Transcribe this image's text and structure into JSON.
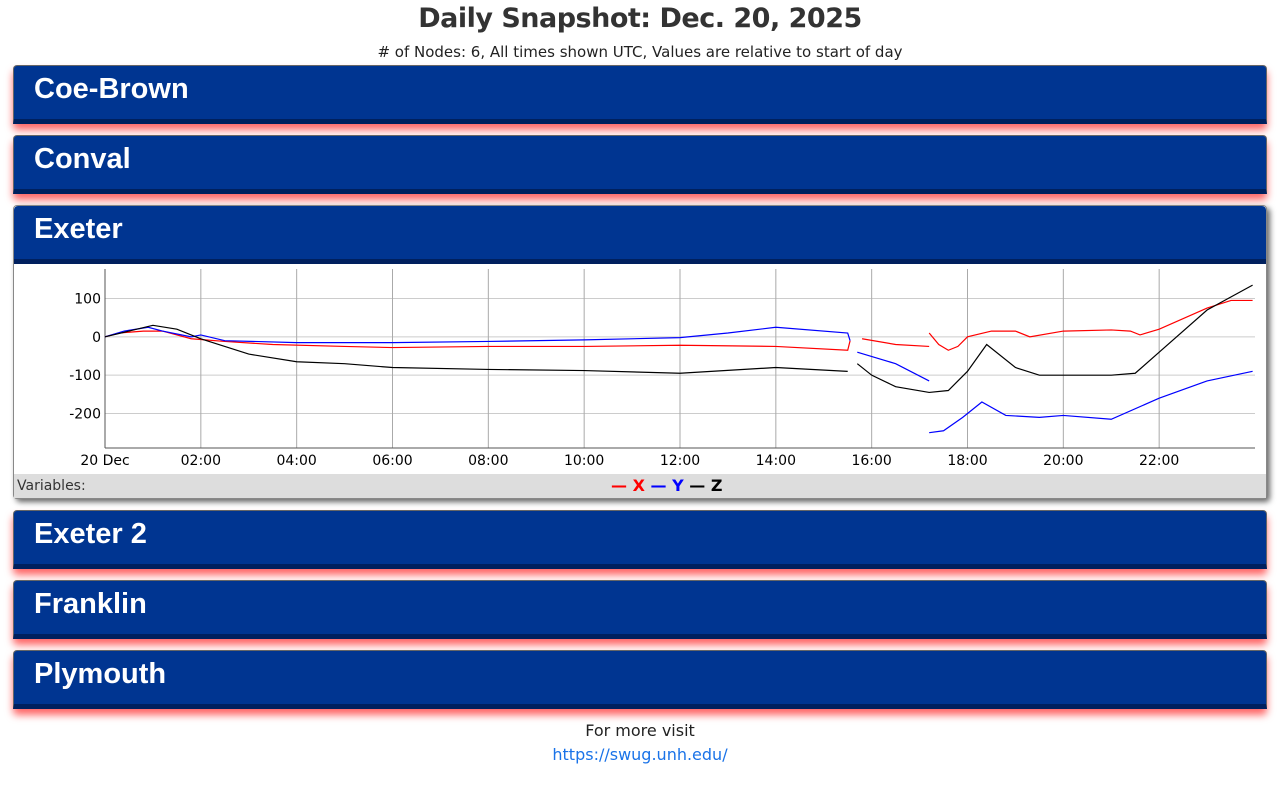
{
  "title": "Daily Snapshot: Dec. 20, 2025",
  "subtitle": "# of Nodes: 6, All times shown UTC, Values are relative to start of day",
  "nodes": [
    {
      "name": "Coe-Brown"
    },
    {
      "name": "Conval"
    },
    {
      "name": "Exeter"
    },
    {
      "name": "Exeter 2"
    },
    {
      "name": "Franklin"
    },
    {
      "name": "Plymouth"
    }
  ],
  "variables_label": "Variables:",
  "legend": [
    {
      "name": "X",
      "color": "#ff0000"
    },
    {
      "name": "Y",
      "color": "#0000ff"
    },
    {
      "name": "Z",
      "color": "#000000"
    }
  ],
  "footer": {
    "text": "For more visit",
    "link": "https://swug.unh.edu/"
  },
  "chart_data": {
    "type": "line",
    "xlabel": "",
    "ylabel": "",
    "xlim": [
      0,
      24
    ],
    "ylim": [
      -290,
      177
    ],
    "x_ticks": [
      {
        "v": 0,
        "label": "20 Dec"
      },
      {
        "v": 2,
        "label": "02:00"
      },
      {
        "v": 4,
        "label": "04:00"
      },
      {
        "v": 6,
        "label": "06:00"
      },
      {
        "v": 8,
        "label": "08:00"
      },
      {
        "v": 10,
        "label": "10:00"
      },
      {
        "v": 12,
        "label": "12:00"
      },
      {
        "v": 14,
        "label": "14:00"
      },
      {
        "v": 16,
        "label": "16:00"
      },
      {
        "v": 18,
        "label": "18:00"
      },
      {
        "v": 20,
        "label": "20:00"
      },
      {
        "v": 22,
        "label": "22:00"
      }
    ],
    "y_ticks": [
      100,
      0,
      -100,
      -200
    ],
    "grid": true,
    "series": [
      {
        "name": "X",
        "color": "#ff0000",
        "segments": [
          [
            [
              0,
              0
            ],
            [
              0.3,
              10
            ],
            [
              0.8,
              15
            ],
            [
              1.2,
              15
            ],
            [
              1.8,
              -5
            ],
            [
              2.5,
              -12
            ],
            [
              3.5,
              -20
            ],
            [
              5,
              -25
            ],
            [
              6,
              -28
            ],
            [
              8,
              -25
            ],
            [
              10,
              -25
            ],
            [
              12,
              -22
            ],
            [
              14,
              -25
            ],
            [
              15.5,
              -35
            ],
            [
              15.55,
              -10
            ]
          ],
          [
            [
              15.8,
              -5
            ],
            [
              16.5,
              -20
            ],
            [
              17.2,
              -25
            ]
          ],
          [
            [
              17.2,
              10
            ],
            [
              17.4,
              -20
            ],
            [
              17.6,
              -35
            ],
            [
              17.8,
              -25
            ],
            [
              18,
              0
            ],
            [
              18.5,
              15
            ],
            [
              19,
              15
            ],
            [
              19.3,
              0
            ],
            [
              20,
              15
            ],
            [
              21,
              18
            ],
            [
              21.4,
              15
            ],
            [
              21.6,
              5
            ],
            [
              22,
              20
            ],
            [
              23,
              75
            ],
            [
              23.5,
              95
            ],
            [
              23.95,
              95
            ]
          ]
        ]
      },
      {
        "name": "Y",
        "color": "#0000ff",
        "segments": [
          [
            [
              0,
              0
            ],
            [
              0.4,
              15
            ],
            [
              0.9,
              25
            ],
            [
              1.2,
              15
            ],
            [
              1.8,
              0
            ],
            [
              2,
              5
            ],
            [
              2.5,
              -10
            ],
            [
              4,
              -15
            ],
            [
              6,
              -15
            ],
            [
              8,
              -12
            ],
            [
              10,
              -8
            ],
            [
              12,
              -2
            ],
            [
              13,
              10
            ],
            [
              14,
              25
            ],
            [
              15.5,
              10
            ],
            [
              15.55,
              -10
            ]
          ],
          [
            [
              15.7,
              -40
            ],
            [
              16.5,
              -70
            ],
            [
              17.2,
              -115
            ]
          ],
          [
            [
              17.2,
              -250
            ],
            [
              17.5,
              -245
            ],
            [
              17.9,
              -210
            ],
            [
              18.3,
              -170
            ],
            [
              18.8,
              -205
            ],
            [
              19.5,
              -210
            ],
            [
              20,
              -205
            ],
            [
              21,
              -215
            ],
            [
              22,
              -160
            ],
            [
              23,
              -115
            ],
            [
              23.95,
              -90
            ]
          ]
        ]
      },
      {
        "name": "Z",
        "color": "#000000",
        "segments": [
          [
            [
              0,
              0
            ],
            [
              0.5,
              15
            ],
            [
              1,
              30
            ],
            [
              1.5,
              20
            ],
            [
              2,
              -5
            ],
            [
              2.5,
              -25
            ],
            [
              3,
              -45
            ],
            [
              4,
              -65
            ],
            [
              5,
              -70
            ],
            [
              6,
              -80
            ],
            [
              8,
              -85
            ],
            [
              10,
              -88
            ],
            [
              12,
              -95
            ],
            [
              14,
              -80
            ],
            [
              15.5,
              -90
            ]
          ],
          [
            [
              15.7,
              -70
            ],
            [
              16,
              -100
            ],
            [
              16.5,
              -130
            ],
            [
              17.2,
              -145
            ],
            [
              17.6,
              -140
            ],
            [
              18,
              -90
            ],
            [
              18.4,
              -20
            ],
            [
              19,
              -80
            ],
            [
              19.5,
              -100
            ],
            [
              20,
              -100
            ],
            [
              21,
              -100
            ],
            [
              21.5,
              -95
            ],
            [
              22,
              -40
            ],
            [
              23,
              70
            ],
            [
              23.95,
              135
            ]
          ]
        ]
      }
    ]
  }
}
